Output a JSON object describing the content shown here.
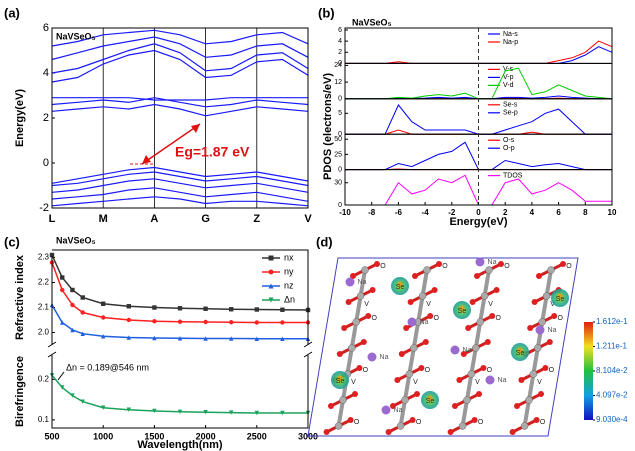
{
  "chart_data": [
    {
      "type": "line",
      "panel_label": "(a)",
      "title": "NaVSeO₅",
      "ylabel": "Energy(eV)",
      "annotation": "Eg=1.87 eV",
      "x": [
        0,
        0.5,
        1,
        1.5,
        2,
        2.5,
        3,
        3.5,
        4,
        4.5,
        5
      ],
      "xlim": [
        0,
        5
      ],
      "xticks": [
        {
          "value": 0,
          "label": "L"
        },
        {
          "value": 1,
          "label": "M"
        },
        {
          "value": 2,
          "label": "A"
        },
        {
          "value": 3,
          "label": "G"
        },
        {
          "value": 4,
          "label": "Z"
        },
        {
          "value": 5,
          "label": "V"
        }
      ],
      "ylim": [
        -2,
        6
      ],
      "yticks": [
        -2,
        0,
        2,
        4,
        6
      ],
      "series": [
        {
          "color": "#1a1aff",
          "values": [
            -0.9,
            -0.7,
            -0.5,
            -0.3,
            -0.2,
            -0.4,
            -0.6,
            -0.5,
            -0.4,
            -0.6,
            -0.8
          ]
        },
        {
          "color": "#1a1aff",
          "values": [
            -1.0,
            -0.9,
            -0.7,
            -0.5,
            -0.4,
            -0.6,
            -0.8,
            -0.7,
            -0.6,
            -0.8,
            -1.0
          ]
        },
        {
          "color": "#1a1aff",
          "values": [
            -1.3,
            -1.2,
            -1.0,
            -0.8,
            -0.7,
            -0.9,
            -1.1,
            -1.0,
            -0.9,
            -1.1,
            -1.3
          ]
        },
        {
          "color": "#1a1aff",
          "values": [
            -1.6,
            -1.5,
            -1.4,
            -1.2,
            -1.1,
            -1.3,
            -1.5,
            -1.4,
            -1.3,
            -1.5,
            -1.7
          ]
        },
        {
          "color": "#1a1aff",
          "values": [
            -1.9,
            -1.8,
            -1.7,
            -1.6,
            -1.5,
            -1.6,
            -1.8,
            -1.7,
            -1.7,
            -1.8,
            -1.9
          ]
        },
        {
          "color": "#1a1aff",
          "values": [
            2.3,
            2.4,
            2.5,
            2.4,
            2.6,
            2.4,
            2.1,
            2.3,
            2.5,
            2.4,
            2.3
          ]
        },
        {
          "color": "#1a1aff",
          "values": [
            2.6,
            2.7,
            2.8,
            2.7,
            2.9,
            2.7,
            2.5,
            2.6,
            2.8,
            2.7,
            2.6
          ]
        },
        {
          "color": "#1a1aff",
          "values": [
            2.9,
            2.9,
            2.9,
            2.9,
            2.8,
            2.8,
            2.8,
            2.9,
            2.9,
            2.9,
            2.9
          ]
        },
        {
          "color": "#1a1aff",
          "values": [
            3.6,
            3.8,
            4.4,
            4.8,
            5.0,
            4.6,
            3.8,
            3.9,
            4.5,
            4.6,
            3.9
          ]
        },
        {
          "color": "#1a1aff",
          "values": [
            4.0,
            4.2,
            4.6,
            5.0,
            5.3,
            4.9,
            4.1,
            4.2,
            4.8,
            4.9,
            4.2
          ]
        },
        {
          "color": "#1a1aff",
          "values": [
            4.6,
            4.9,
            5.2,
            5.4,
            5.6,
            5.3,
            4.7,
            4.8,
            5.2,
            5.3,
            4.7
          ]
        },
        {
          "color": "#1a1aff",
          "values": [
            5.2,
            5.4,
            5.7,
            5.8,
            5.9,
            5.7,
            5.3,
            5.4,
            5.7,
            5.8,
            5.3
          ]
        }
      ]
    },
    {
      "type": "line",
      "panel_label": "(b)",
      "title": "NaVSeO₅",
      "xlabel": "Energy(eV)",
      "ylabel": "PDOS (electrons/eV)",
      "x": [
        -10,
        -9,
        -8,
        -7,
        -6,
        -5,
        -4,
        -3,
        -2,
        -1,
        0,
        1,
        2,
        3,
        4,
        5,
        6,
        7,
        8,
        9,
        10
      ],
      "xlim": [
        -10,
        10
      ],
      "xticks": [
        -10,
        -8,
        -6,
        -4,
        -2,
        0,
        2,
        4,
        6,
        8,
        10
      ],
      "panels": [
        {
          "ylim": [
            0,
            6
          ],
          "yticks": [
            0,
            2,
            4,
            6
          ],
          "series": [
            {
              "name": "Na-s",
              "color": "#0000ff",
              "values": [
                0,
                0,
                0,
                0,
                0,
                0,
                0,
                0,
                0,
                0,
                0,
                0,
                0,
                0,
                0,
                0,
                0,
                0.5,
                1.5,
                3,
                2
              ]
            },
            {
              "name": "Na-p",
              "color": "#ff0000",
              "values": [
                0,
                0,
                0,
                0,
                0.3,
                0,
                0,
                0,
                0,
                0,
                0,
                0,
                0,
                0,
                0,
                0,
                0.5,
                1,
                2,
                4,
                3
              ]
            }
          ]
        },
        {
          "ylim": [
            0,
            24
          ],
          "yticks": [
            0,
            12,
            24
          ],
          "series": [
            {
              "name": "V-s",
              "color": "#ff0000",
              "values": [
                0,
                0,
                0,
                0,
                0,
                0,
                0,
                0,
                0,
                0,
                0,
                0,
                0.5,
                0.5,
                0,
                0,
                0.5,
                0,
                0,
                0,
                0
              ]
            },
            {
              "name": "V-p",
              "color": "#0000ff",
              "values": [
                0,
                0,
                0,
                0,
                0.5,
                0.3,
                0.5,
                1,
                0.5,
                1,
                0,
                0,
                1,
                1,
                0.5,
                1,
                2,
                1,
                0.5,
                0,
                0
              ]
            },
            {
              "name": "V-d",
              "color": "#00cc00",
              "values": [
                0,
                0,
                0,
                0,
                1,
                0.5,
                2,
                3,
                2,
                4,
                0,
                0,
                20,
                22,
                3,
                5,
                10,
                6,
                2,
                1,
                0
              ]
            }
          ]
        },
        {
          "ylim": [
            0,
            8
          ],
          "yticks": [
            0,
            5
          ],
          "series": [
            {
              "name": "Se-s",
              "color": "#ff0000",
              "values": [
                0,
                0,
                0,
                0,
                1,
                0,
                0,
                0,
                0,
                0,
                0,
                0,
                0,
                0,
                0.5,
                0,
                0,
                0,
                0,
                0,
                0
              ]
            },
            {
              "name": "Se-p",
              "color": "#0000ff",
              "values": [
                0,
                0,
                0,
                0,
                7,
                3,
                1,
                1,
                1,
                1,
                0,
                0,
                1,
                2,
                3,
                5,
                6,
                3,
                0,
                0,
                0
              ]
            }
          ]
        },
        {
          "ylim": [
            0,
            55
          ],
          "yticks": [
            0,
            25,
            50
          ],
          "series": [
            {
              "name": "O-s",
              "color": "#ff0000",
              "values": [
                0,
                0,
                0,
                0,
                1,
                0,
                0,
                0,
                0,
                0,
                0,
                0,
                0,
                0,
                0,
                0,
                0,
                0,
                0,
                0,
                0
              ]
            },
            {
              "name": "O-p",
              "color": "#0000ff",
              "values": [
                0,
                0,
                0,
                0,
                10,
                5,
                15,
                25,
                30,
                45,
                0,
                0,
                15,
                10,
                5,
                8,
                10,
                5,
                0,
                0,
                0
              ]
            }
          ]
        },
        {
          "ylim": [
            0,
            45
          ],
          "yticks": [
            0,
            30
          ],
          "series": [
            {
              "name": "TDOS",
              "color": "#ff00ff",
              "values": [
                0,
                0,
                0,
                0,
                30,
                15,
                20,
                35,
                30,
                40,
                0,
                0,
                30,
                35,
                15,
                20,
                30,
                20,
                5,
                5,
                5
              ]
            }
          ]
        }
      ]
    },
    {
      "type": "line",
      "panel_label": "(c)",
      "title": "NaVSeO₅",
      "xlabel": "Wavelength(nm)",
      "ylabel": "Refractive index",
      "ylabel2": "Birefringence",
      "annotation": "Δn = 0.189@546 nm",
      "x": [
        500,
        600,
        700,
        800,
        1000,
        1250,
        1500,
        1750,
        2000,
        2250,
        2500,
        2750,
        3000
      ],
      "xlim": [
        500,
        3000
      ],
      "xticks": [
        500,
        1000,
        1500,
        2000,
        2500,
        3000
      ],
      "ylim": [
        1.95,
        2.33
      ],
      "yticks": [
        {
          "value": 2,
          "label": "2.0"
        },
        2.1,
        2.2,
        2.3
      ],
      "y2lim": [
        0.08,
        0.26
      ],
      "y2ticks": [
        0.1,
        0.2
      ],
      "series": [
        {
          "name": "nx",
          "color": "#333333",
          "marker": "square",
          "values": [
            2.31,
            2.22,
            2.17,
            2.14,
            2.115,
            2.105,
            2.1,
            2.097,
            2.095,
            2.093,
            2.092,
            2.091,
            2.09
          ]
        },
        {
          "name": "ny",
          "color": "#ff2020",
          "marker": "circle",
          "values": [
            2.28,
            2.17,
            2.11,
            2.08,
            2.06,
            2.05,
            2.045,
            2.043,
            2.042,
            2.041,
            2.04,
            2.04,
            2.04
          ]
        },
        {
          "name": "nz",
          "color": "#1f5fe0",
          "marker": "triangle-up",
          "values": [
            2.11,
            2.04,
            2.01,
            1.995,
            1.985,
            1.98,
            1.978,
            1.977,
            1.976,
            1.976,
            1.975,
            1.975,
            1.975
          ]
        },
        {
          "name": "Δn",
          "color": "#1aa35a",
          "marker": "triangle-down",
          "axis": "y2",
          "values": [
            0.21,
            0.18,
            0.16,
            0.145,
            0.13,
            0.125,
            0.122,
            0.12,
            0.119,
            0.118,
            0.117,
            0.117,
            0.117
          ]
        }
      ]
    },
    {
      "type": "structure",
      "panel_label": "(d)",
      "atom_labels": [
        "Na",
        "Se",
        "V",
        "O"
      ],
      "clim": [
        0.000903,
        0.1612
      ],
      "cticks": [
        {
          "value": 0.1612,
          "label": "1.612e-1"
        },
        {
          "value": 0.1211,
          "label": "1.211e-1"
        },
        {
          "value": 0.08104,
          "label": "8.104e-2"
        },
        {
          "value": 0.04097,
          "label": "4.097e-2"
        },
        {
          "value": 0.000903,
          "label": "9.030e-4"
        }
      ]
    }
  ]
}
